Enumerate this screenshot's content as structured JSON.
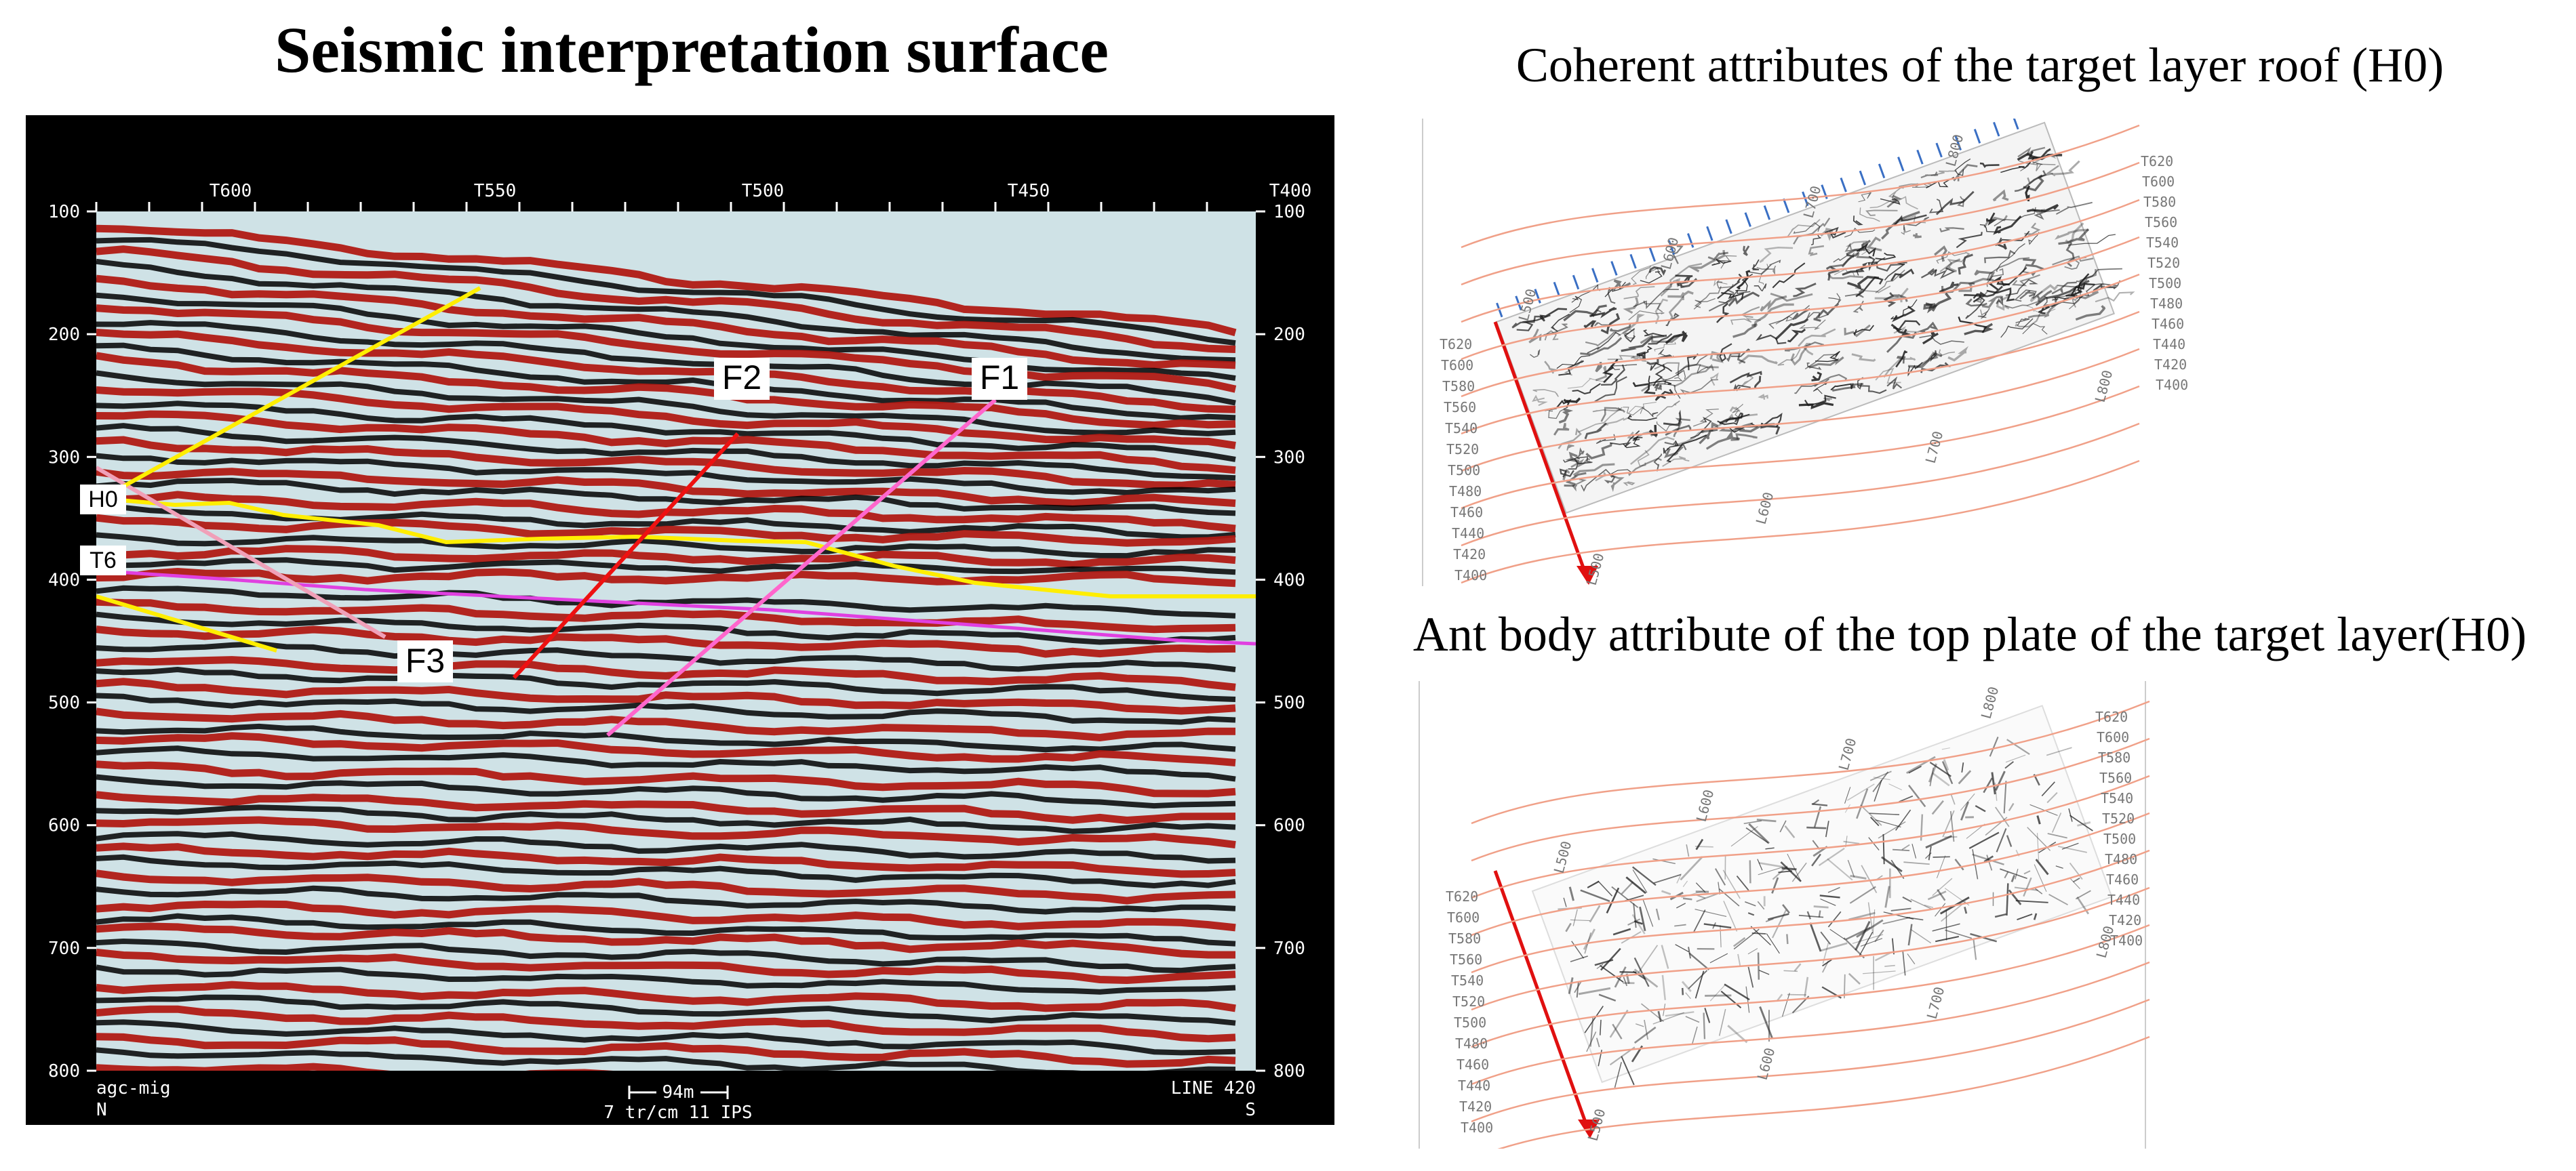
{
  "titles": {
    "main": "Seismic interpretation surface",
    "coherent": "Coherent attributes of the target layer roof (H0)",
    "ant": "Ant body attribute of the top plate of the target layer(H0)"
  },
  "section": {
    "trace_labels": [
      "T600",
      "T550",
      "T500",
      "T450",
      "T400"
    ],
    "time_labels": [
      "100",
      "200",
      "300",
      "400",
      "500",
      "600",
      "700",
      "800"
    ],
    "horizons": [
      "H0",
      "T6"
    ],
    "faults": [
      "F1",
      "F2",
      "F3"
    ],
    "footer_left": "agc-mig",
    "footer_left_dir": "N",
    "footer_center_scale": "94m",
    "footer_center": "7 tr/cm 11 IPS",
    "footer_right": "LINE 420",
    "footer_right_dir": "S",
    "colors": {
      "peak": "#b01a14",
      "trough": "#000000",
      "h0": "#ffee00",
      "t6": "#e040e0",
      "f1": "#ff66cc",
      "f2": "#ee1111",
      "f3": "#f0a0b8"
    }
  },
  "coherent_map": {
    "t_labels": [
      "T620",
      "T600",
      "T580",
      "T560",
      "T540",
      "T520",
      "T500",
      "T480",
      "T460",
      "T440",
      "T420",
      "T400"
    ],
    "right_t_labels": [
      "T620",
      "T600",
      "T580",
      "T560",
      "T540",
      "T520",
      "T500",
      "T480",
      "T460",
      "T440",
      "T420",
      "T400"
    ],
    "top_l_labels": [
      "L500",
      "L600",
      "L700",
      "L800"
    ],
    "bottom_l_labels": [
      "L500",
      "L600",
      "L700",
      "L800"
    ]
  },
  "ant_map": {
    "t_labels": [
      "T620",
      "T600",
      "T580",
      "T560",
      "T540",
      "T520",
      "T500",
      "T480",
      "T460",
      "T440",
      "T420",
      "T400"
    ],
    "right_t_labels": [
      "T620",
      "T600",
      "T580",
      "T560",
      "T540",
      "T520",
      "T500",
      "T480",
      "T460",
      "T440",
      "T420",
      "T400"
    ],
    "top_l_labels": [
      "L500",
      "L600",
      "L700",
      "L800"
    ],
    "bottom_l_labels": [
      "L500",
      "L600",
      "L700",
      "L800"
    ]
  }
}
